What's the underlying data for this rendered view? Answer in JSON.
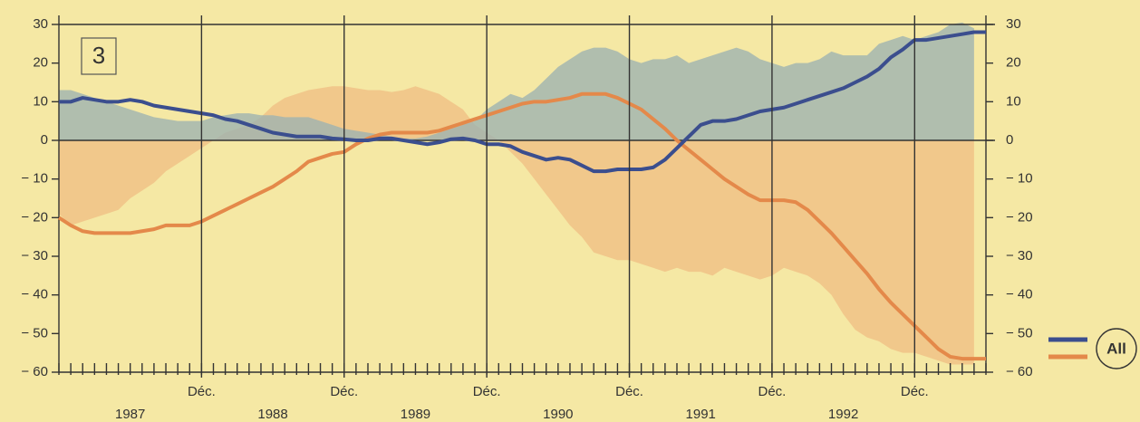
{
  "chart_data": {
    "type": "line",
    "panel_label": "3",
    "legend_label": "All",
    "categories": [
      null,
      null,
      null,
      null,
      null,
      null,
      null,
      null,
      null,
      null,
      null,
      null,
      "Déc.",
      null,
      null,
      null,
      null,
      null,
      null,
      null,
      null,
      null,
      null,
      null,
      "Déc.",
      null,
      null,
      null,
      null,
      null,
      null,
      null,
      null,
      null,
      null,
      null,
      "Déc.",
      null,
      null,
      null,
      null,
      null,
      null,
      null,
      null,
      null,
      null,
      null,
      "Déc.",
      null,
      null,
      null,
      null,
      null,
      null,
      null,
      null,
      null,
      null,
      null,
      "Déc.",
      null,
      null,
      null,
      null,
      null,
      null,
      null,
      null,
      null,
      null,
      null,
      "Déc.",
      null,
      null,
      null,
      null,
      null,
      null
    ],
    "year_labels": [
      "1987",
      "1988",
      "1989",
      "1990",
      "1991",
      "1992"
    ],
    "ylim": [
      -60,
      30
    ],
    "yticks": [
      {
        "value": -60,
        "label": "− 60"
      },
      {
        "value": -50,
        "label": "− 50"
      },
      {
        "value": -40,
        "label": "− 40"
      },
      {
        "value": -30,
        "label": "− 30"
      },
      {
        "value": -20,
        "label": "− 20"
      },
      {
        "value": -10,
        "label": "− 10"
      },
      0,
      10,
      20,
      30
    ],
    "y2lim": [
      -60,
      30
    ],
    "y2ticks": [
      {
        "value": -60,
        "label": "− 60"
      },
      {
        "value": -50,
        "label": "− 50"
      },
      {
        "value": -40,
        "label": "− 40"
      },
      {
        "value": -30,
        "label": "− 30"
      },
      {
        "value": -20,
        "label": "− 20"
      },
      {
        "value": -10,
        "label": "− 10"
      },
      0,
      10,
      20,
      30
    ],
    "series": [
      {
        "kind": "area",
        "color": "#f0bf85",
        "values": [
          -19,
          -22,
          -21,
          -20,
          -19,
          -18,
          -15,
          -13,
          -11,
          -8,
          -6,
          -4,
          -2,
          0,
          2,
          3,
          4,
          6,
          9,
          11,
          12,
          13,
          13.5,
          14,
          14,
          13.5,
          13,
          13,
          12.5,
          13,
          14,
          13,
          12,
          10,
          8,
          4,
          2,
          0,
          -3,
          -6,
          -10,
          -14,
          -18,
          -22,
          -25,
          -29,
          -30,
          -31,
          -31,
          -32,
          -33,
          -34,
          -33,
          -34,
          -34,
          -35,
          -33,
          -34,
          -35,
          -36,
          -35,
          -33,
          -34,
          -35,
          -37,
          -40,
          -45,
          -49,
          -51,
          -52,
          -54,
          -55,
          -55,
          -56,
          -57,
          -58,
          -58,
          -58,
          null
        ]
      },
      {
        "kind": "area",
        "color": "#9fb3b0",
        "values": [
          13,
          13,
          12,
          11,
          10,
          9,
          8,
          7,
          6,
          5.5,
          5,
          5,
          5,
          6,
          6.5,
          7,
          7,
          6.5,
          6.5,
          6,
          6,
          6,
          5,
          4,
          3,
          2.5,
          2,
          1.5,
          1,
          0.5,
          0.5,
          1,
          2,
          3,
          4,
          5,
          8,
          10,
          12,
          11,
          13,
          16,
          19,
          21,
          23,
          24,
          24,
          23,
          21,
          20,
          21,
          21,
          22,
          20,
          21,
          22,
          23,
          24,
          23,
          21,
          20,
          19,
          20,
          20,
          21,
          23,
          22,
          22,
          22,
          25,
          26,
          27,
          26,
          27,
          28,
          30,
          30.5,
          29,
          null
        ]
      },
      {
        "kind": "line",
        "color": "#e4894a",
        "values": [
          -20,
          -22,
          -23.5,
          -24,
          -24,
          -24,
          -24,
          -23.5,
          -23,
          -22,
          -22,
          -22,
          -21,
          -19.5,
          -18,
          -16.5,
          -15,
          -13.5,
          -12,
          -10,
          -8,
          -5.5,
          -4.5,
          -3.5,
          -3,
          -1,
          0.5,
          1.5,
          2,
          2,
          2,
          2,
          2.5,
          3.5,
          4.5,
          5.5,
          6.5,
          7.5,
          8.5,
          9.5,
          10,
          10,
          10.5,
          11,
          12,
          12,
          12,
          11,
          9.5,
          8,
          5.5,
          3,
          0,
          -2.5,
          -5,
          -7.5,
          -10,
          -12,
          -14,
          -15.5,
          -15.5,
          -15.5,
          -16,
          -18,
          -21,
          -24,
          -27.5,
          -31,
          -34.5,
          -38.5,
          -42,
          -45,
          -48,
          -51,
          -54,
          -56,
          -56.5,
          -56.5,
          -56.5
        ]
      },
      {
        "kind": "line",
        "color": "#3b4e8e",
        "values": [
          10,
          10,
          11,
          10.5,
          10,
          10,
          10.5,
          10,
          9,
          8.5,
          8,
          7.5,
          7,
          6.5,
          5.5,
          5,
          4,
          3,
          2,
          1.5,
          1,
          1,
          1,
          0.5,
          0.3,
          0,
          0,
          0.5,
          0.5,
          0,
          -0.5,
          -1,
          -0.5,
          0.3,
          0.5,
          0,
          -1,
          -1,
          -1.5,
          -3,
          -4,
          -5,
          -4.5,
          -5,
          -6.5,
          -8,
          -8,
          -7.5,
          -7.5,
          -7.5,
          -7,
          -5,
          -2,
          1,
          4,
          5,
          5,
          5.5,
          6.5,
          7.5,
          8,
          8.5,
          9.5,
          10.5,
          11.5,
          12.5,
          13.5,
          15,
          16.5,
          18.5,
          21.5,
          23.5,
          26,
          26,
          26.5,
          27,
          27.5,
          28,
          28
        ]
      }
    ]
  }
}
